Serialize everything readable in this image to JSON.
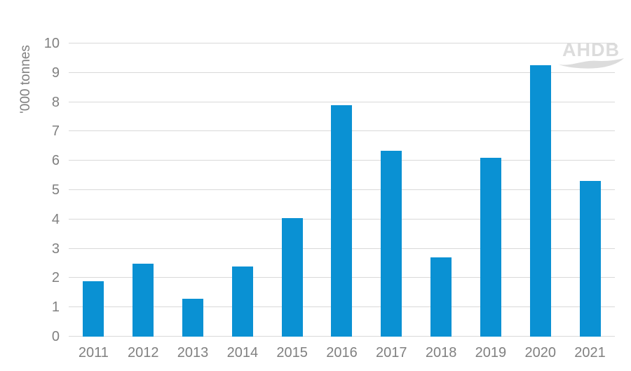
{
  "chart_data": {
    "type": "bar",
    "title": "",
    "categories": [
      "2011",
      "2012",
      "2013",
      "2014",
      "2015",
      "2016",
      "2017",
      "2018",
      "2019",
      "2020",
      "2021"
    ],
    "values": [
      1.9,
      2.5,
      1.3,
      2.4,
      4.05,
      7.9,
      6.35,
      2.7,
      6.1,
      9.25,
      5.3
    ],
    "xlabel": "",
    "ylabel": "'000 tonnes",
    "ylim": [
      0,
      10
    ],
    "ytick_step": 1,
    "grid": "horizontal",
    "legend": "none",
    "bar_color": "#0a91d3",
    "gridline_color": "#d9d9d9",
    "axis_text_color": "#808080"
  },
  "watermark": {
    "text": "AHDB",
    "color": "#dcdcdc"
  }
}
